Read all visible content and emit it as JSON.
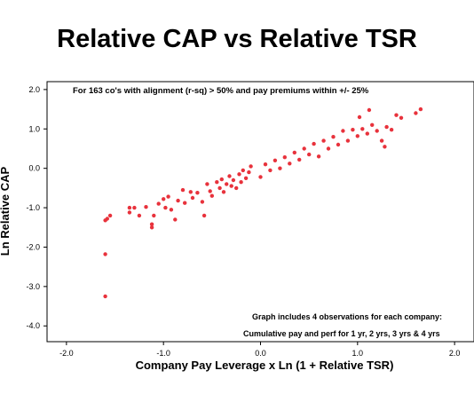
{
  "chart_data": {
    "type": "scatter",
    "title": "Relative CAP vs Relative TSR",
    "xlabel": "Company Pay Leverage x Ln (1 + Relative TSR)",
    "ylabel": "Ln Relative CAP",
    "xlim": [
      -2.2,
      2.2
    ],
    "ylim": [
      -4.4,
      2.2
    ],
    "x_ticks": [
      "-2.0",
      "-1.0",
      "0.0",
      "1.0",
      "2.0"
    ],
    "y_ticks": [
      "2.0",
      "1.0",
      "0.0",
      "-1.0",
      "-2.0",
      "-3.0",
      "-4.0"
    ],
    "grid": false,
    "marker_color": "#e8323c",
    "annotations": {
      "top": "For 163 co's with alignment (r-sq) > 50% and pay premiums within +/- 25%",
      "bottom_line1": "Graph includes 4 observations for each company:",
      "bottom_line2": "Cumulative pay and perf for 1 yr, 2 yrs, 3 yrs & 4 yrs"
    },
    "series": [
      {
        "points": [
          [
            -1.6,
            -3.25
          ],
          [
            -1.6,
            -2.18
          ],
          [
            -1.6,
            -1.32
          ],
          [
            -1.58,
            -1.28
          ],
          [
            -1.55,
            -1.2
          ],
          [
            -1.35,
            -1.0
          ],
          [
            -1.35,
            -1.12
          ],
          [
            -1.3,
            -1.0
          ],
          [
            -1.25,
            -1.2
          ],
          [
            -1.18,
            -0.98
          ],
          [
            -1.12,
            -1.5
          ],
          [
            -1.12,
            -1.42
          ],
          [
            -1.1,
            -1.2
          ],
          [
            -1.05,
            -0.9
          ],
          [
            -1.0,
            -0.78
          ],
          [
            -0.98,
            -1.0
          ],
          [
            -0.95,
            -0.72
          ],
          [
            -0.92,
            -1.05
          ],
          [
            -0.88,
            -1.3
          ],
          [
            -0.85,
            -0.82
          ],
          [
            -0.8,
            -0.55
          ],
          [
            -0.78,
            -0.88
          ],
          [
            -0.72,
            -0.6
          ],
          [
            -0.7,
            -0.75
          ],
          [
            -0.65,
            -0.62
          ],
          [
            -0.6,
            -0.85
          ],
          [
            -0.58,
            -1.2
          ],
          [
            -0.55,
            -0.4
          ],
          [
            -0.52,
            -0.58
          ],
          [
            -0.5,
            -0.7
          ],
          [
            -0.45,
            -0.35
          ],
          [
            -0.42,
            -0.5
          ],
          [
            -0.4,
            -0.28
          ],
          [
            -0.38,
            -0.6
          ],
          [
            -0.35,
            -0.4
          ],
          [
            -0.32,
            -0.2
          ],
          [
            -0.3,
            -0.45
          ],
          [
            -0.28,
            -0.3
          ],
          [
            -0.25,
            -0.5
          ],
          [
            -0.22,
            -0.15
          ],
          [
            -0.2,
            -0.35
          ],
          [
            -0.18,
            -0.05
          ],
          [
            -0.15,
            -0.25
          ],
          [
            -0.12,
            -0.1
          ],
          [
            -0.1,
            0.05
          ],
          [
            0.0,
            -0.22
          ],
          [
            0.05,
            0.1
          ],
          [
            0.1,
            -0.05
          ],
          [
            0.15,
            0.2
          ],
          [
            0.2,
            0.0
          ],
          [
            0.25,
            0.28
          ],
          [
            0.3,
            0.12
          ],
          [
            0.35,
            0.4
          ],
          [
            0.4,
            0.22
          ],
          [
            0.45,
            0.5
          ],
          [
            0.5,
            0.35
          ],
          [
            0.55,
            0.62
          ],
          [
            0.6,
            0.3
          ],
          [
            0.65,
            0.7
          ],
          [
            0.7,
            0.5
          ],
          [
            0.75,
            0.8
          ],
          [
            0.8,
            0.6
          ],
          [
            0.85,
            0.95
          ],
          [
            0.9,
            0.7
          ],
          [
            0.95,
            0.98
          ],
          [
            1.0,
            0.82
          ],
          [
            1.05,
            1.0
          ],
          [
            1.1,
            0.88
          ],
          [
            1.15,
            1.1
          ],
          [
            1.2,
            0.95
          ],
          [
            1.25,
            0.7
          ],
          [
            1.28,
            0.55
          ],
          [
            1.3,
            1.05
          ],
          [
            1.35,
            0.98
          ],
          [
            1.4,
            1.35
          ],
          [
            1.45,
            1.28
          ],
          [
            1.6,
            1.4
          ],
          [
            1.65,
            1.5
          ],
          [
            1.12,
            1.48
          ],
          [
            1.02,
            1.3
          ]
        ]
      }
    ]
  }
}
